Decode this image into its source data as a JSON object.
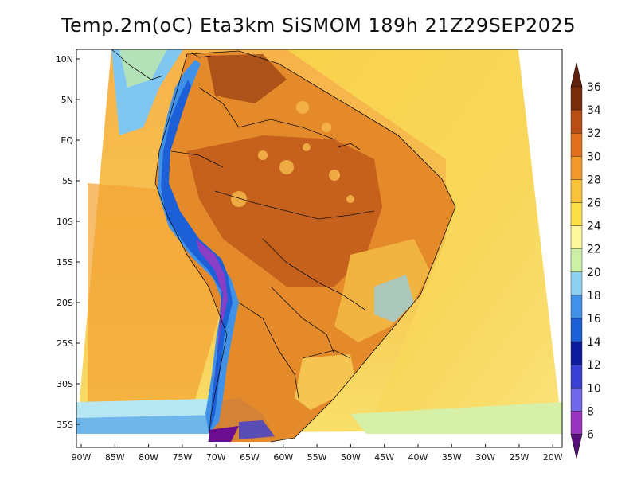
{
  "title": "Temp.2m(oC) Eta3km SiSMOM 189h 21Z29SEP2025",
  "lat_labels": [
    "10N",
    "5N",
    "EQ",
    "5S",
    "10S",
    "15S",
    "20S",
    "25S",
    "30S",
    "35S"
  ],
  "lon_labels": [
    "90W",
    "85W",
    "80W",
    "75W",
    "70W",
    "65W",
    "60W",
    "55W",
    "50W",
    "45W",
    "40W",
    "35W",
    "30W",
    "25W",
    "20W"
  ],
  "colorbar": {
    "labels": [
      "6",
      "8",
      "10",
      "12",
      "14",
      "16",
      "18",
      "20",
      "22",
      "24",
      "26",
      "28",
      "30",
      "32",
      "34",
      "36"
    ],
    "colors": [
      "#6a0d8f",
      "#9a34c0",
      "#7068e8",
      "#3a3fd6",
      "#0c1c9c",
      "#1c5fd6",
      "#3f92e8",
      "#8fd0f2",
      "#ccf0a6",
      "#fbf79a",
      "#fbe146",
      "#f8c23a",
      "#f39a2c",
      "#e0701e",
      "#b84e14",
      "#7a2c0c"
    ],
    "low_color": "#55107a",
    "high_color": "#62210c"
  }
}
